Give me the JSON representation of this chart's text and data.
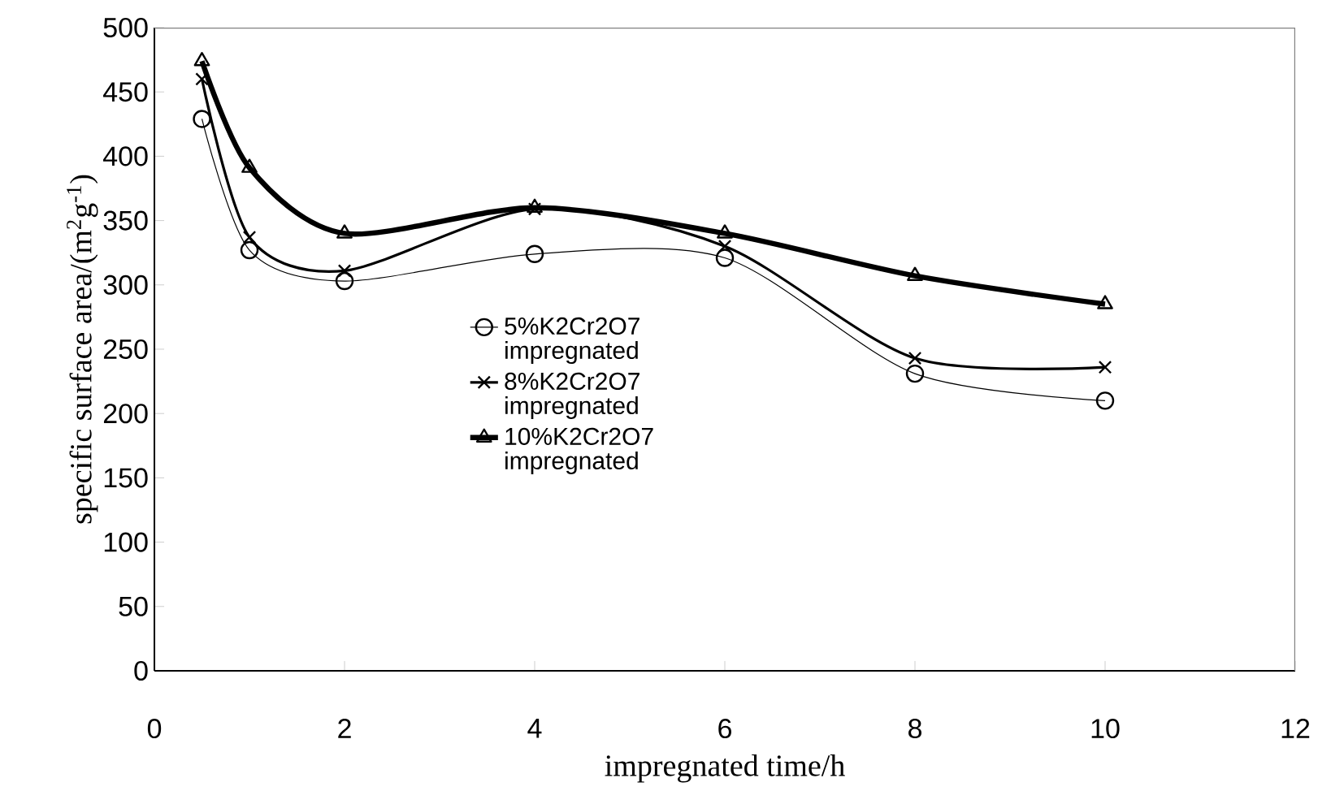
{
  "chart_data": {
    "type": "line",
    "xlabel": "impregnated time/h",
    "ylabel": "specific surface area/(m$^{2}$g$^{-1}$)",
    "x": [
      0.5,
      1,
      2,
      4,
      6,
      8,
      10
    ],
    "series": [
      {
        "name": "5%K2Cr2O7 impregnated",
        "color": "#000000",
        "marker": "circle",
        "values": [
          429,
          327,
          303,
          324,
          321,
          231,
          210
        ]
      },
      {
        "name": "8%K2Cr2O7 impregnated",
        "color": "#000000",
        "marker": "cross",
        "values": [
          460,
          337,
          311,
          359,
          330,
          243,
          236
        ]
      },
      {
        "name": "10%K2Cr2O7 impregnated",
        "color": "#000000",
        "marker": "triangle",
        "values": [
          474,
          391,
          340,
          360,
          340,
          307,
          285
        ]
      }
    ],
    "xlim": [
      0,
      12
    ],
    "xticks": [
      0,
      2,
      4,
      6,
      8,
      10,
      12
    ],
    "ylim": [
      0,
      500
    ],
    "yticks": [
      0,
      50,
      100,
      150,
      200,
      250,
      300,
      350,
      400,
      450,
      500
    ],
    "grid": false,
    "legend": "center",
    "line_style": "solid"
  }
}
